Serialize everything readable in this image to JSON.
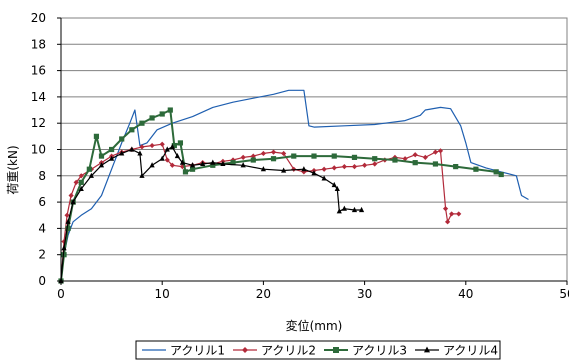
{
  "chart_data": {
    "type": "line",
    "xlabel": "変位(mm)",
    "ylabel": "荷重(kN)",
    "xlim": [
      0,
      50
    ],
    "ylim": [
      0,
      20
    ],
    "x_ticks": [
      0,
      10,
      20,
      30,
      40,
      50
    ],
    "y_ticks": [
      0,
      2,
      4,
      6,
      8,
      10,
      12,
      14,
      16,
      18,
      20
    ],
    "grid": "horizontal",
    "legend_position": "bottom",
    "series": [
      {
        "name": "アクリル1",
        "color": "#1f5fb0",
        "marker": "none",
        "points": [
          [
            0,
            0
          ],
          [
            0.3,
            2
          ],
          [
            0.7,
            3.5
          ],
          [
            1.2,
            4.5
          ],
          [
            2,
            5
          ],
          [
            3,
            5.5
          ],
          [
            4,
            6.5
          ],
          [
            5,
            8.5
          ],
          [
            6,
            10.5
          ],
          [
            6.8,
            12
          ],
          [
            7.3,
            13
          ],
          [
            7.8,
            10.3
          ],
          [
            8.5,
            10.5
          ],
          [
            9.5,
            11.5
          ],
          [
            11,
            12
          ],
          [
            13,
            12.5
          ],
          [
            15,
            13.2
          ],
          [
            17,
            13.6
          ],
          [
            19,
            13.9
          ],
          [
            21,
            14.2
          ],
          [
            22.5,
            14.5
          ],
          [
            24,
            14.5
          ],
          [
            24.5,
            11.8
          ],
          [
            25,
            11.7
          ],
          [
            28,
            11.8
          ],
          [
            31,
            11.9
          ],
          [
            34,
            12.2
          ],
          [
            35.5,
            12.6
          ],
          [
            36,
            13
          ],
          [
            37.5,
            13.2
          ],
          [
            38.5,
            13.1
          ],
          [
            39.5,
            11.8
          ],
          [
            40,
            10.5
          ],
          [
            40.5,
            9
          ],
          [
            42,
            8.6
          ],
          [
            43.5,
            8.3
          ],
          [
            45,
            8
          ],
          [
            45.5,
            6.5
          ],
          [
            46.2,
            6.2
          ]
        ]
      },
      {
        "name": "アクリル2",
        "color": "#b22a3a",
        "marker": "diamond",
        "points": [
          [
            0,
            0
          ],
          [
            0.3,
            3
          ],
          [
            0.6,
            5
          ],
          [
            1,
            6.5
          ],
          [
            1.5,
            7.5
          ],
          [
            2,
            8
          ],
          [
            3,
            8.5
          ],
          [
            4,
            9
          ],
          [
            5,
            9.5
          ],
          [
            6,
            9.8
          ],
          [
            7,
            10
          ],
          [
            8,
            10.2
          ],
          [
            9,
            10.3
          ],
          [
            10,
            10.4
          ],
          [
            10.5,
            9.2
          ],
          [
            11,
            8.8
          ],
          [
            12,
            8.7
          ],
          [
            13,
            8.8
          ],
          [
            14,
            9
          ],
          [
            15,
            8.9
          ],
          [
            16,
            9.1
          ],
          [
            17,
            9.2
          ],
          [
            18,
            9.4
          ],
          [
            19,
            9.5
          ],
          [
            20,
            9.7
          ],
          [
            21,
            9.8
          ],
          [
            22,
            9.7
          ],
          [
            23,
            8.5
          ],
          [
            24,
            8.3
          ],
          [
            25,
            8.4
          ],
          [
            26,
            8.5
          ],
          [
            27,
            8.6
          ],
          [
            28,
            8.7
          ],
          [
            29,
            8.7
          ],
          [
            30,
            8.8
          ],
          [
            31,
            8.9
          ],
          [
            32,
            9.2
          ],
          [
            33,
            9.4
          ],
          [
            34,
            9.3
          ],
          [
            35,
            9.6
          ],
          [
            36,
            9.4
          ],
          [
            37,
            9.8
          ],
          [
            37.5,
            9.9
          ],
          [
            38,
            5.5
          ],
          [
            38.2,
            4.5
          ],
          [
            38.6,
            5.1
          ],
          [
            39.3,
            5.1
          ]
        ]
      },
      {
        "name": "アクリル3",
        "color": "#2d6a3a",
        "marker": "square",
        "points": [
          [
            0,
            0
          ],
          [
            0.3,
            2
          ],
          [
            0.7,
            4
          ],
          [
            1.2,
            6
          ],
          [
            2,
            7.5
          ],
          [
            2.8,
            8.5
          ],
          [
            3.5,
            11
          ],
          [
            4,
            9.5
          ],
          [
            5,
            10
          ],
          [
            6,
            10.8
          ],
          [
            7,
            11.5
          ],
          [
            8,
            12
          ],
          [
            9,
            12.4
          ],
          [
            10,
            12.7
          ],
          [
            10.8,
            13
          ],
          [
            11.2,
            10.3
          ],
          [
            11.8,
            10.5
          ],
          [
            12.3,
            8.3
          ],
          [
            13,
            8.5
          ],
          [
            15,
            8.8
          ],
          [
            17,
            9
          ],
          [
            19,
            9.2
          ],
          [
            21,
            9.3
          ],
          [
            23,
            9.5
          ],
          [
            25,
            9.5
          ],
          [
            27,
            9.5
          ],
          [
            29,
            9.4
          ],
          [
            31,
            9.3
          ],
          [
            33,
            9.2
          ],
          [
            35,
            9
          ],
          [
            37,
            8.9
          ],
          [
            39,
            8.7
          ],
          [
            41,
            8.5
          ],
          [
            43,
            8.3
          ],
          [
            43.5,
            8.1
          ]
        ]
      },
      {
        "name": "アクリル4",
        "color": "#000000",
        "marker": "triangle",
        "points": [
          [
            0,
            0
          ],
          [
            0.3,
            2.5
          ],
          [
            0.7,
            4.5
          ],
          [
            1.2,
            6
          ],
          [
            2,
            7
          ],
          [
            3,
            8
          ],
          [
            4,
            8.8
          ],
          [
            5,
            9.3
          ],
          [
            6,
            9.7
          ],
          [
            7,
            10
          ],
          [
            7.8,
            9.7
          ],
          [
            8,
            8
          ],
          [
            9,
            8.8
          ],
          [
            10,
            9.3
          ],
          [
            10.5,
            10
          ],
          [
            11,
            10.2
          ],
          [
            11.5,
            9.5
          ],
          [
            12,
            9
          ],
          [
            13,
            8.8
          ],
          [
            14,
            8.9
          ],
          [
            15,
            9
          ],
          [
            16,
            8.9
          ],
          [
            18,
            8.8
          ],
          [
            20,
            8.5
          ],
          [
            22,
            8.4
          ],
          [
            24,
            8.5
          ],
          [
            25,
            8.2
          ],
          [
            26,
            7.8
          ],
          [
            27,
            7.3
          ],
          [
            27.3,
            7
          ],
          [
            27.5,
            5.3
          ],
          [
            28,
            5.5
          ],
          [
            29,
            5.4
          ],
          [
            29.7,
            5.4
          ]
        ]
      }
    ]
  }
}
